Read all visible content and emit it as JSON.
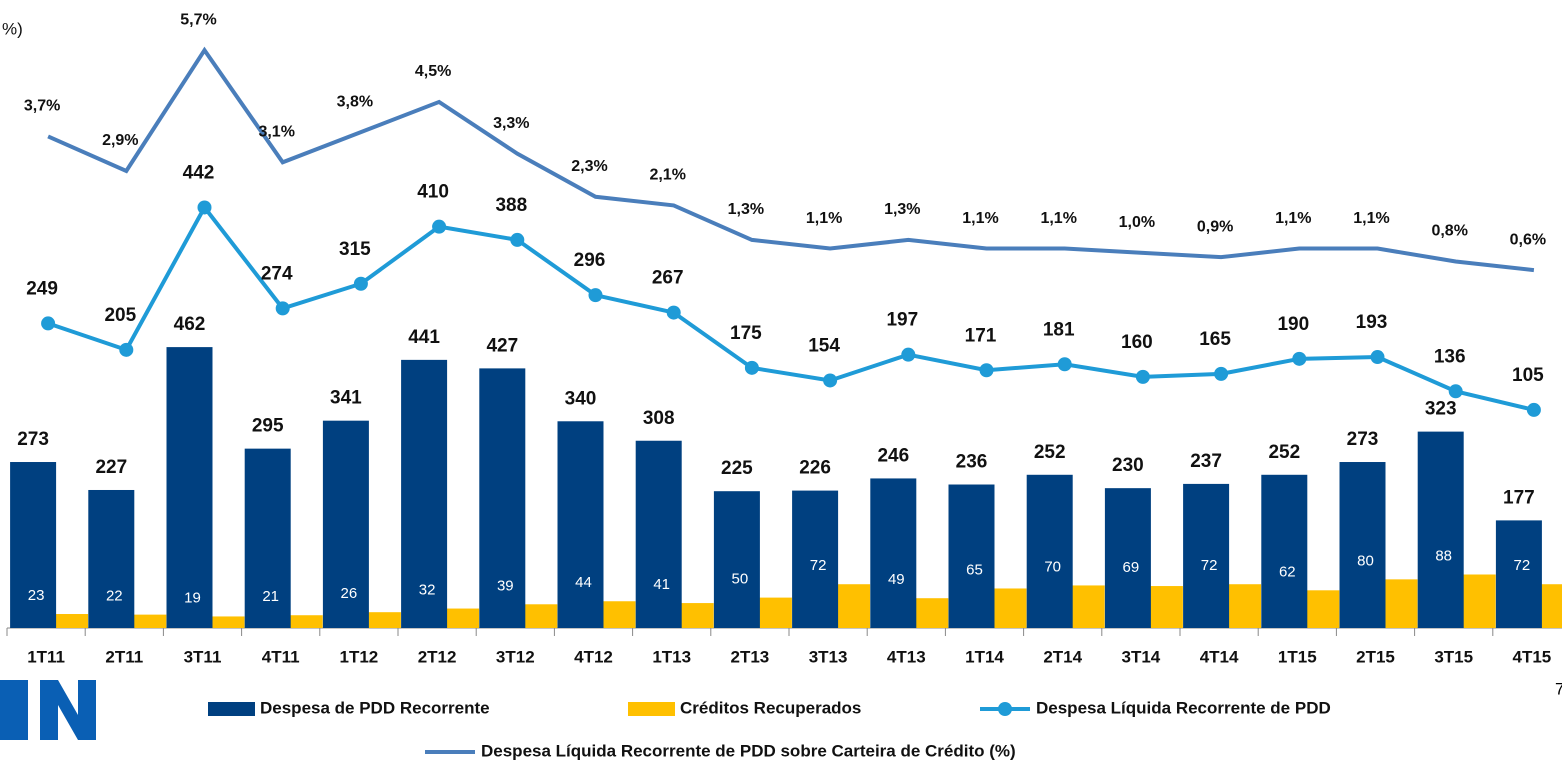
{
  "chart_data": {
    "type": "bar",
    "title": "%)",
    "page_number": "7",
    "categories": [
      "1T11",
      "2T11",
      "3T11",
      "4T11",
      "1T12",
      "2T12",
      "3T12",
      "4T12",
      "1T13",
      "2T13",
      "3T13",
      "4T13",
      "1T14",
      "2T14",
      "3T14",
      "4T14",
      "1T15",
      "2T15",
      "3T15",
      "4T15"
    ],
    "ylim": [
      0,
      1000
    ],
    "y2lim": [
      -258,
      754
    ],
    "y3lim": [
      -7.7,
      6.4
    ],
    "grid": false,
    "legend": "bottom",
    "series": [
      {
        "name": "Despesa de PDD Recorrente",
        "type": "bar",
        "color": "#004080",
        "values": [
          273,
          227,
          462,
          295,
          341,
          441,
          427,
          340,
          308,
          225,
          226,
          246,
          236,
          252,
          230,
          237,
          252,
          273,
          323,
          177
        ]
      },
      {
        "name": "Créditos Recuperados",
        "type": "bar",
        "color": "#ffc000",
        "values": [
          23,
          22,
          19,
          21,
          26,
          32,
          39,
          44,
          41,
          50,
          72,
          49,
          65,
          70,
          69,
          72,
          62,
          80,
          88,
          72
        ]
      },
      {
        "name": "Despesa Líquida Recorrente de PDD",
        "type": "line",
        "axis": "y2",
        "color": "#1f9bd7",
        "markers": true,
        "values": [
          249,
          205,
          442,
          274,
          315,
          410,
          388,
          296,
          267,
          175,
          154,
          197,
          171,
          181,
          160,
          165,
          190,
          193,
          136,
          105
        ]
      },
      {
        "name": "Despesa Líquida Recorrente de PDD sobre Carteira de Crédito (%)",
        "type": "line",
        "axis": "y3",
        "color": "#4a7ebb",
        "markers": false,
        "values": [
          3.7,
          2.9,
          5.7,
          3.1,
          3.8,
          4.5,
          3.3,
          2.3,
          2.1,
          1.3,
          1.1,
          1.3,
          1.1,
          1.1,
          1.0,
          0.9,
          1.1,
          1.1,
          0.8,
          0.6
        ],
        "value_labels": [
          "3,7%",
          "2,9%",
          "5,7%",
          "3,1%",
          "3,8%",
          "4,5%",
          "3,3%",
          "2,3%",
          "2,1%",
          "1,3%",
          "1,1%",
          "1,3%",
          "1,1%",
          "1,1%",
          "1,0%",
          "0,9%",
          "1,1%",
          "1,1%",
          "0,8%",
          "0,6%"
        ]
      }
    ]
  }
}
